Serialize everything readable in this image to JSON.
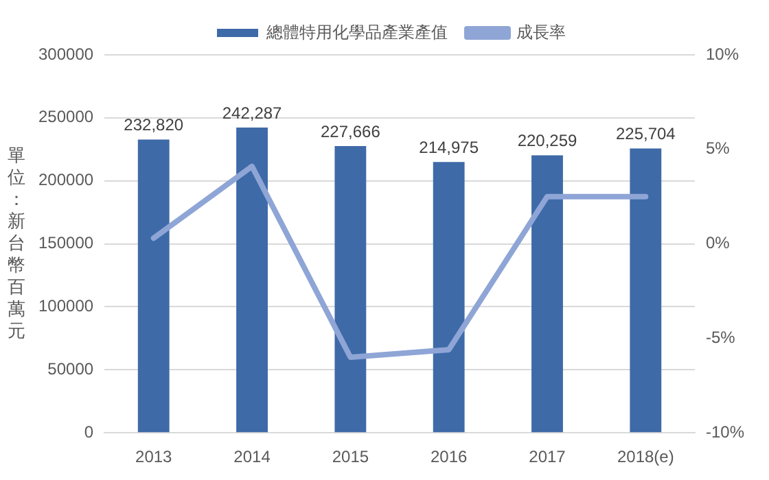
{
  "chart_data": {
    "type": "bar",
    "ylabel": "單位：新台幣百萬元",
    "categories": [
      "2013",
      "2014",
      "2015",
      "2016",
      "2017",
      "2018(e)"
    ],
    "series": [
      {
        "name": "總體特用化學品產業產值",
        "color": "#3e6aa8",
        "values": [
          232820,
          242287,
          227666,
          214975,
          220259,
          225704
        ],
        "value_labels": [
          "232,820",
          "242,287",
          "227,666",
          "214,975",
          "220,259",
          "225,704"
        ]
      },
      {
        "name": "成長率",
        "type": "line",
        "axis": "y2",
        "color": "#8ea5d6",
        "values": [
          0.3,
          4.1,
          -6.0,
          -5.6,
          2.5,
          2.5
        ]
      }
    ],
    "ylim": [
      0,
      300000
    ],
    "yticks": [
      0,
      50000,
      100000,
      150000,
      200000,
      250000,
      300000
    ],
    "y2lim": [
      -10,
      10
    ],
    "y2ticks": [
      {
        "value": -10,
        "label": "-10%"
      },
      {
        "value": -5,
        "label": "-5%"
      },
      {
        "value": 0,
        "label": "0%"
      },
      {
        "value": 5,
        "label": "5%"
      },
      {
        "value": 10,
        "label": "10%"
      }
    ],
    "grid": "y",
    "legend": "top",
    "marker": "none",
    "line_style": "solid"
  }
}
